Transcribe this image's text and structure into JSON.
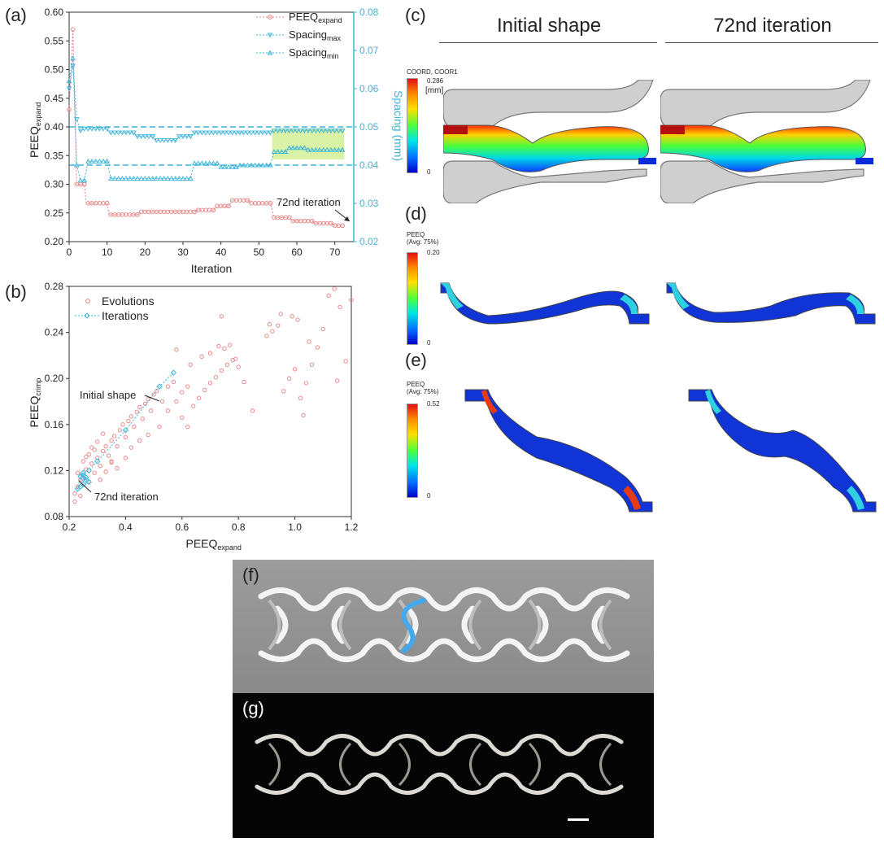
{
  "panels": {
    "a": "(a)",
    "b": "(b)",
    "c": "(c)",
    "d": "(d)",
    "e": "(e)",
    "f": "(f)",
    "g": "(g)"
  },
  "columns": {
    "initial": "Initial shape",
    "iter72": "72nd iteration"
  },
  "legend_c": {
    "title": "COORD, COOR1",
    "unit": "[mm]",
    "max": "0.286",
    "min": "0"
  },
  "legend_d": {
    "title": "PEEQ",
    "sub": "(Avg: 75%)",
    "max": "0.20",
    "min": "0"
  },
  "legend_e": {
    "title": "PEEQ",
    "sub": "(Avg: 75%)",
    "max": "0.52",
    "min": "0"
  },
  "colors": {
    "peeq": "#e87f7f",
    "spacing": "#3cb4d8",
    "highlight": "#d9f2a6",
    "stent_blue": "#44a9ec"
  },
  "chart_data": [
    {
      "type": "line",
      "panel": "a",
      "xlabel": "Iteration",
      "ylabel": "PEEQ",
      "ylabel_sub": "expand",
      "y2label": "Spacing (mm)",
      "xlim": [
        0,
        75
      ],
      "ylim": [
        0.2,
        0.6
      ],
      "y2lim": [
        0.02,
        0.08
      ],
      "xticks": [
        0,
        10,
        20,
        30,
        40,
        50,
        60,
        70
      ],
      "yticks": [
        "0.20",
        "0.25",
        "0.30",
        "0.35",
        "0.40",
        "0.45",
        "0.50",
        "0.55",
        "0.60"
      ],
      "y2ticks": [
        "0.02",
        "0.03",
        "0.04",
        "0.05",
        "0.06",
        "0.07",
        "0.08"
      ],
      "ref_lines_y2": [
        0.05,
        0.04
      ],
      "highlight_x": [
        53.5,
        72.5
      ],
      "annotation": "72nd iteration",
      "legend": [
        {
          "name": "PEEQ",
          "sub": "expand"
        },
        {
          "name": "Spacing",
          "sub": "max"
        },
        {
          "name": "Spacing",
          "sub": "min"
        }
      ],
      "peeq_segments": [
        [
          0,
          0.43
        ],
        [
          1,
          0.57
        ],
        [
          2,
          0.3
        ],
        [
          4,
          0.3
        ],
        [
          4.5,
          0.267
        ],
        [
          10,
          0.267
        ],
        [
          10.5,
          0.247
        ],
        [
          18,
          0.247
        ],
        [
          19,
          0.252
        ],
        [
          33,
          0.252
        ],
        [
          33.5,
          0.255
        ],
        [
          38,
          0.255
        ],
        [
          39,
          0.262
        ],
        [
          42,
          0.262
        ],
        [
          43,
          0.272
        ],
        [
          47,
          0.272
        ],
        [
          48,
          0.267
        ],
        [
          53,
          0.267
        ],
        [
          54,
          0.242
        ],
        [
          58,
          0.242
        ],
        [
          59,
          0.236
        ],
        [
          64,
          0.236
        ],
        [
          65,
          0.232
        ],
        [
          69,
          0.232
        ],
        [
          70,
          0.228
        ],
        [
          72,
          0.228
        ]
      ],
      "spacing_max_segments": [
        [
          0,
          0.06
        ],
        [
          1,
          0.066
        ],
        [
          2,
          0.052
        ],
        [
          3,
          0.049
        ],
        [
          4,
          0.0495
        ],
        [
          10,
          0.0495
        ],
        [
          10.5,
          0.0485
        ],
        [
          17,
          0.0485
        ],
        [
          18,
          0.0475
        ],
        [
          22,
          0.0475
        ],
        [
          23,
          0.0465
        ],
        [
          28,
          0.0465
        ],
        [
          29,
          0.0475
        ],
        [
          32,
          0.0475
        ],
        [
          33,
          0.0485
        ],
        [
          53,
          0.0485
        ],
        [
          54,
          0.049
        ],
        [
          72,
          0.049
        ]
      ],
      "spacing_min_segments": [
        [
          0,
          0.062
        ],
        [
          1,
          0.068
        ],
        [
          2,
          0.04
        ],
        [
          3,
          0.036
        ],
        [
          4,
          0.036
        ],
        [
          5,
          0.041
        ],
        [
          10,
          0.041
        ],
        [
          11,
          0.0365
        ],
        [
          32,
          0.0365
        ],
        [
          33,
          0.0405
        ],
        [
          39,
          0.0405
        ],
        [
          40,
          0.0395
        ],
        [
          44,
          0.0395
        ],
        [
          45,
          0.04
        ],
        [
          53,
          0.04
        ],
        [
          54,
          0.0435
        ],
        [
          57,
          0.0435
        ],
        [
          58,
          0.0445
        ],
        [
          62,
          0.0445
        ],
        [
          63,
          0.044
        ],
        [
          72,
          0.044
        ]
      ]
    },
    {
      "type": "scatter",
      "panel": "b",
      "xlabel": "PEEQ",
      "xlabel_sub": "expand",
      "ylabel": "PEEQ",
      "ylabel_sub": "crimp",
      "xlim": [
        0.2,
        1.2
      ],
      "ylim": [
        0.08,
        0.28
      ],
      "xticks": [
        "0.2",
        "0.4",
        "0.6",
        "0.8",
        "1.0",
        "1.2"
      ],
      "yticks": [
        "0.08",
        "0.12",
        "0.16",
        "0.20",
        "0.24",
        "0.28"
      ],
      "legend": [
        "Evolutions",
        "Iterations"
      ],
      "annotations": [
        "Initial shape",
        "72nd iteration"
      ],
      "evolutions": [
        [
          0.22,
          0.1
        ],
        [
          0.23,
          0.106
        ],
        [
          0.24,
          0.112
        ],
        [
          0.22,
          0.093
        ],
        [
          0.25,
          0.116
        ],
        [
          0.26,
          0.121
        ],
        [
          0.24,
          0.098
        ],
        [
          0.27,
          0.11
        ],
        [
          0.28,
          0.126
        ],
        [
          0.29,
          0.118
        ],
        [
          0.3,
          0.131
        ],
        [
          0.31,
          0.124
        ],
        [
          0.32,
          0.137
        ],
        [
          0.33,
          0.141
        ],
        [
          0.34,
          0.133
        ],
        [
          0.35,
          0.146
        ],
        [
          0.36,
          0.15
        ],
        [
          0.37,
          0.141
        ],
        [
          0.38,
          0.155
        ],
        [
          0.39,
          0.16
        ],
        [
          0.4,
          0.149
        ],
        [
          0.41,
          0.163
        ],
        [
          0.42,
          0.167
        ],
        [
          0.43,
          0.158
        ],
        [
          0.44,
          0.171
        ],
        [
          0.45,
          0.175
        ],
        [
          0.46,
          0.165
        ],
        [
          0.47,
          0.178
        ],
        [
          0.48,
          0.182
        ],
        [
          0.49,
          0.172
        ],
        [
          0.5,
          0.186
        ],
        [
          0.51,
          0.189
        ],
        [
          0.53,
          0.18
        ],
        [
          0.55,
          0.193
        ],
        [
          0.57,
          0.197
        ],
        [
          0.58,
          0.225
        ],
        [
          0.3,
          0.145
        ],
        [
          0.32,
          0.152
        ],
        [
          0.28,
          0.14
        ],
        [
          0.26,
          0.132
        ],
        [
          0.35,
          0.128
        ],
        [
          0.37,
          0.122
        ],
        [
          0.4,
          0.131
        ],
        [
          0.42,
          0.14
        ],
        [
          0.45,
          0.146
        ],
        [
          0.48,
          0.151
        ],
        [
          0.52,
          0.158
        ],
        [
          0.6,
          0.166
        ],
        [
          0.62,
          0.158
        ],
        [
          0.64,
          0.176
        ],
        [
          0.66,
          0.183
        ],
        [
          0.68,
          0.19
        ],
        [
          0.7,
          0.196
        ],
        [
          0.72,
          0.201
        ],
        [
          0.74,
          0.207
        ],
        [
          0.76,
          0.212
        ],
        [
          0.78,
          0.216
        ],
        [
          0.8,
          0.21
        ],
        [
          0.63,
          0.212
        ],
        [
          0.67,
          0.219
        ],
        [
          0.7,
          0.222
        ],
        [
          0.73,
          0.228
        ],
        [
          0.75,
          0.226
        ],
        [
          0.77,
          0.229
        ],
        [
          0.79,
          0.217
        ],
        [
          0.82,
          0.197
        ],
        [
          0.85,
          0.172
        ],
        [
          0.74,
          0.254
        ],
        [
          0.55,
          0.172
        ],
        [
          0.58,
          0.18
        ],
        [
          0.6,
          0.188
        ],
        [
          0.62,
          0.193
        ],
        [
          0.23,
          0.118
        ],
        [
          0.25,
          0.128
        ],
        [
          0.27,
          0.134
        ],
        [
          0.29,
          0.138
        ],
        [
          0.31,
          0.112
        ],
        [
          0.33,
          0.119
        ],
        [
          0.35,
          0.127
        ],
        [
          0.9,
          0.237
        ],
        [
          0.92,
          0.241
        ],
        [
          0.94,
          0.246
        ],
        [
          0.96,
          0.189
        ],
        [
          0.98,
          0.2
        ],
        [
          1.0,
          0.208
        ],
        [
          1.02,
          0.183
        ],
        [
          1.03,
          0.168
        ],
        [
          1.04,
          0.196
        ],
        [
          1.06,
          0.212
        ],
        [
          1.08,
          0.227
        ],
        [
          1.1,
          0.243
        ],
        [
          1.12,
          0.272
        ],
        [
          1.14,
          0.278
        ],
        [
          1.15,
          0.198
        ],
        [
          1.16,
          0.262
        ],
        [
          1.18,
          0.215
        ],
        [
          1.2,
          0.268
        ],
        [
          0.91,
          0.247
        ],
        [
          0.95,
          0.256
        ],
        [
          1.01,
          0.251
        ],
        [
          1.05,
          0.232
        ],
        [
          0.99,
          0.254
        ]
      ],
      "iterations": [
        [
          0.57,
          0.205
        ],
        [
          0.52,
          0.193
        ],
        [
          0.4,
          0.155
        ],
        [
          0.3,
          0.128
        ],
        [
          0.27,
          0.12
        ],
        [
          0.25,
          0.116
        ],
        [
          0.25,
          0.113
        ],
        [
          0.26,
          0.112
        ],
        [
          0.27,
          0.11
        ],
        [
          0.25,
          0.108
        ],
        [
          0.24,
          0.106
        ],
        [
          0.23,
          0.104
        ],
        [
          0.24,
          0.115
        ],
        [
          0.25,
          0.118
        ],
        [
          0.26,
          0.114
        ]
      ]
    }
  ]
}
